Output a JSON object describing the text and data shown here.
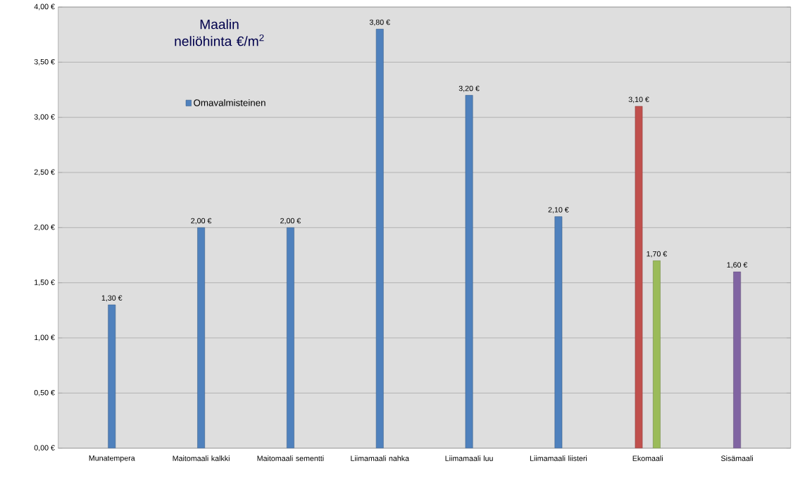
{
  "chart_data": {
    "type": "bar",
    "title": "Maalin neliöhinta €/m$^{2}$",
    "categories": [
      "Munatempera",
      "Maitomaali kalkki",
      "Maitomaali sementti",
      "Liimamaali nahka",
      "Liimamaali luu",
      "Liimamaali liisteri",
      "Ekomaali",
      "Sisämaali"
    ],
    "series": [
      {
        "name": "Omavalmisteinen",
        "color": "#4f81bd",
        "values": [
          1.3,
          2.0,
          2.0,
          3.8,
          3.2,
          2.1,
          null,
          null
        ],
        "value_labels": [
          "1,30 €",
          "2,00 €",
          "2,00 €",
          "3,80 €",
          "3,20 €",
          "2,10 €",
          null,
          null
        ]
      },
      {
        "color": "#c0504d",
        "values": [
          null,
          null,
          null,
          null,
          null,
          null,
          3.1,
          null
        ],
        "value_labels": [
          null,
          null,
          null,
          null,
          null,
          null,
          "3,10 €",
          null
        ]
      },
      {
        "color": "#9bbb59",
        "values": [
          null,
          null,
          null,
          null,
          null,
          null,
          1.7,
          null
        ],
        "value_labels": [
          null,
          null,
          null,
          null,
          null,
          null,
          "1,70 €",
          null
        ]
      },
      {
        "color": "#8064a2",
        "values": [
          null,
          null,
          null,
          null,
          null,
          null,
          null,
          1.6
        ],
        "value_labels": [
          null,
          null,
          null,
          null,
          null,
          null,
          null,
          "1,60 €"
        ]
      }
    ],
    "ylim": [
      0,
      4
    ],
    "yticks": [
      {
        "value": 0,
        "label": "0,00 €"
      },
      {
        "value": 0.5,
        "label": "0,50 €"
      },
      {
        "value": 1,
        "label": "1,00 €"
      },
      {
        "value": 1.5,
        "label": "1,50 €"
      },
      {
        "value": 2,
        "label": "2,00 €"
      },
      {
        "value": 2.5,
        "label": "2,50 €"
      },
      {
        "value": 3,
        "label": "3,00 €"
      },
      {
        "value": 3.5,
        "label": "3,50 €"
      },
      {
        "value": 4,
        "label": "4,00 €"
      }
    ],
    "grid": "y",
    "legend": "top left"
  }
}
